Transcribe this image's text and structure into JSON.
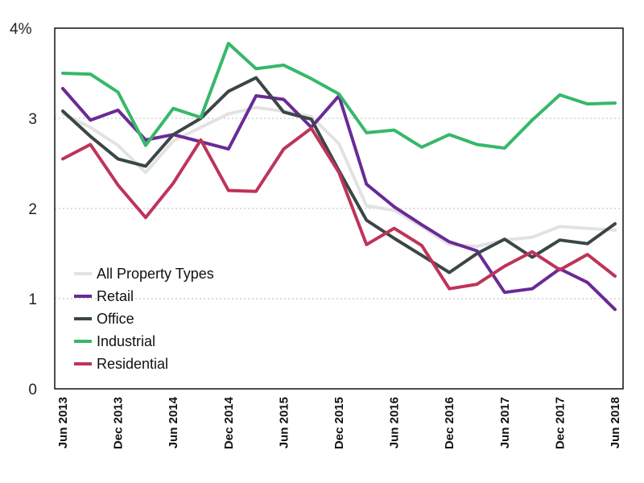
{
  "chart_data": {
    "type": "line",
    "title": "",
    "xlabel": "",
    "ylabel": "",
    "y_unit_suffix": "%",
    "ylim": [
      0,
      4
    ],
    "yticks": [
      0,
      1,
      2,
      3,
      4
    ],
    "grid": "horizontal dotted",
    "legend_position": "bottom-left",
    "x": [
      "Jun 2013",
      "Sep 2013",
      "Dec 2013",
      "Mar 2014",
      "Jun 2014",
      "Sep 2014",
      "Dec 2014",
      "Mar 2015",
      "Jun 2015",
      "Sep 2015",
      "Dec 2015",
      "Mar 2016",
      "Jun 2016",
      "Sep 2016",
      "Dec 2016",
      "Mar 2017",
      "Jun 2017",
      "Sep 2017",
      "Dec 2017",
      "Mar 2018",
      "Jun 2018"
    ],
    "x_tick_labels": [
      "Jun 2013",
      "Dec 2013",
      "Jun 2014",
      "Dec 2014",
      "Jun 2015",
      "Dec 2015",
      "Jun 2016",
      "Dec 2016",
      "Jun 2017",
      "Dec 2017",
      "Jun 2018"
    ],
    "series": [
      {
        "name": "All Property Types",
        "color": "#e2e2e2",
        "values": [
          3.05,
          2.9,
          2.7,
          2.4,
          2.75,
          2.9,
          3.05,
          3.12,
          3.08,
          3.02,
          2.72,
          2.03,
          1.98,
          1.8,
          1.6,
          1.58,
          1.65,
          1.68,
          1.8,
          1.78,
          1.76
        ]
      },
      {
        "name": "Retail",
        "color": "#6a2a96",
        "values": [
          3.33,
          2.98,
          3.09,
          2.76,
          2.82,
          2.74,
          2.66,
          3.25,
          3.21,
          2.9,
          3.25,
          2.27,
          2.02,
          1.82,
          1.63,
          1.53,
          1.07,
          1.11,
          1.33,
          1.18,
          0.88
        ]
      },
      {
        "name": "Office",
        "color": "#3b4646",
        "values": [
          3.08,
          2.8,
          2.55,
          2.47,
          2.82,
          3.0,
          3.3,
          3.45,
          3.07,
          2.99,
          2.42,
          1.87,
          1.67,
          1.48,
          1.29,
          1.5,
          1.66,
          1.46,
          1.65,
          1.61,
          1.83
        ]
      },
      {
        "name": "Industrial",
        "color": "#36b86a",
        "values": [
          3.5,
          3.49,
          3.29,
          2.7,
          3.11,
          3.01,
          3.83,
          3.55,
          3.59,
          3.44,
          3.27,
          2.84,
          2.87,
          2.68,
          2.82,
          2.71,
          2.67,
          2.98,
          3.26,
          3.16,
          3.17
        ]
      },
      {
        "name": "Residential",
        "color": "#be3458",
        "values": [
          2.55,
          2.71,
          2.26,
          1.9,
          2.28,
          2.76,
          2.2,
          2.19,
          2.66,
          2.89,
          2.4,
          1.6,
          1.78,
          1.59,
          1.11,
          1.16,
          1.36,
          1.52,
          1.32,
          1.49,
          1.25
        ]
      }
    ]
  }
}
